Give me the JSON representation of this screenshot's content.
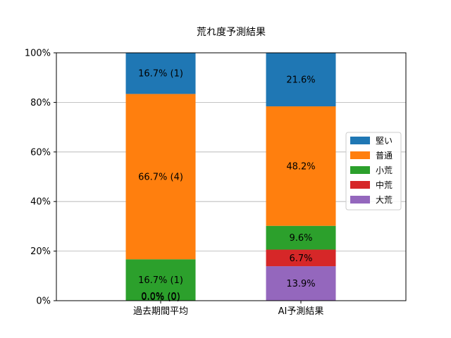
{
  "chart_data": {
    "type": "bar",
    "stacked": true,
    "title": "荒れ度予測結果",
    "xlabel": "",
    "ylabel": "",
    "categories": [
      "過去期間平均",
      "AI予測結果"
    ],
    "ylim": [
      0,
      100
    ],
    "yticks": [
      0,
      20,
      40,
      60,
      80,
      100
    ],
    "ytick_labels": [
      "0%",
      "20%",
      "40%",
      "60%",
      "80%",
      "100%"
    ],
    "grid": "horizontal",
    "legend_position": "center-right",
    "series": [
      {
        "name": "大荒",
        "color": "#9467bd",
        "values": [
          0.0,
          13.9
        ],
        "labels": [
          "",
          "13.9%"
        ]
      },
      {
        "name": "中荒",
        "color": "#d62728",
        "values": [
          0.0,
          6.7
        ],
        "labels": [
          "",
          "6.7%"
        ]
      },
      {
        "name": "小荒",
        "color": "#2ca02c",
        "values": [
          16.7,
          9.6
        ],
        "labels": [
          "16.7% (1)",
          "9.6%"
        ]
      },
      {
        "name": "普通",
        "color": "#ff7f0e",
        "values": [
          66.7,
          48.2
        ],
        "labels": [
          "66.7% (4)",
          "48.2%"
        ]
      },
      {
        "name": "堅い",
        "color": "#1f77b4",
        "values": [
          16.7,
          21.6
        ],
        "labels": [
          "16.7% (1)",
          "21.6%"
        ]
      }
    ],
    "extra_labels": [
      {
        "category_index": 0,
        "value": 0.0,
        "text": "0.0% (0)"
      },
      {
        "category_index": 0,
        "value": 0.0,
        "text": "0.0% (0)"
      }
    ],
    "legend_order": [
      "堅い",
      "普通",
      "小荒",
      "中荒",
      "大荒"
    ]
  }
}
